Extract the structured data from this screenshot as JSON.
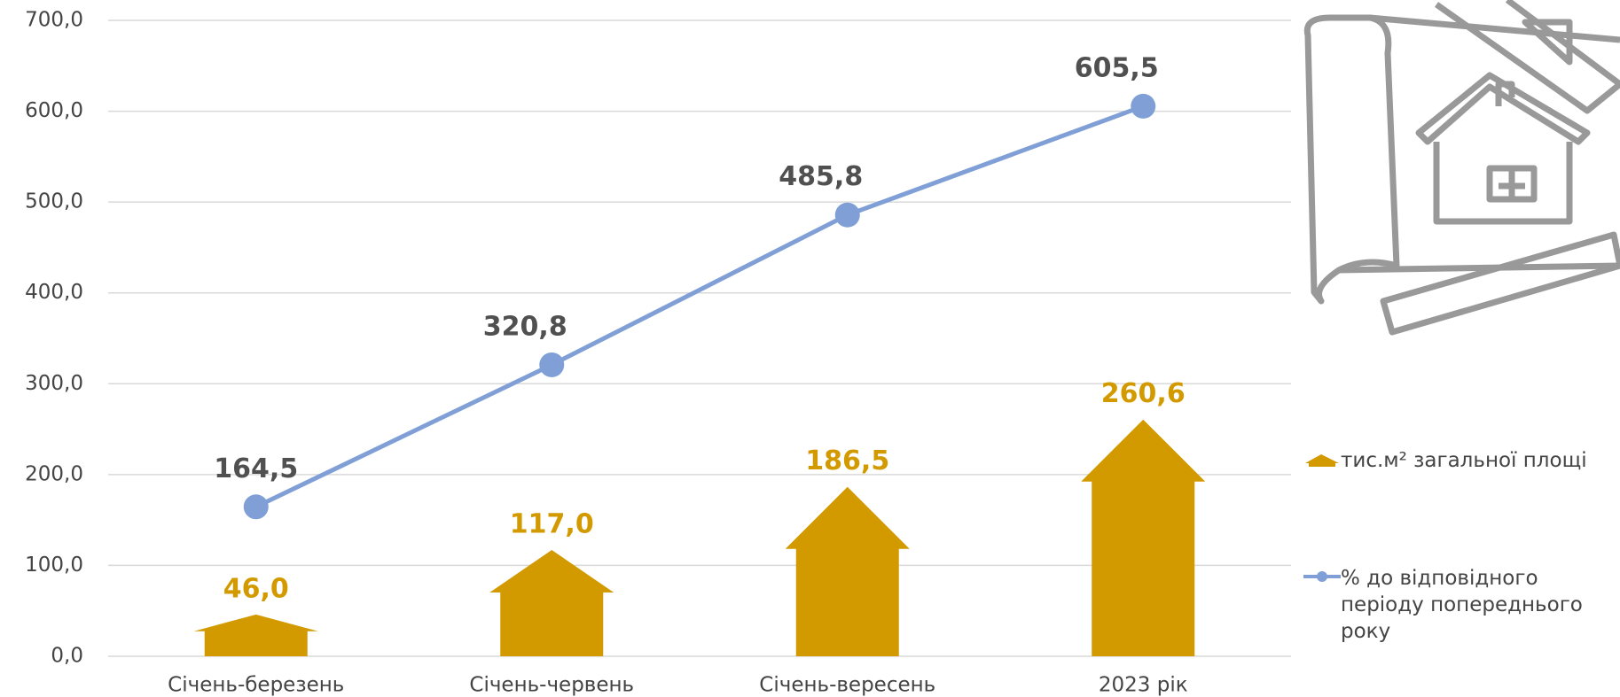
{
  "chart_data": {
    "type": "bar-line",
    "categories": [
      "Січень-березень",
      "Січень-червень",
      "Січень-вересень",
      "2023 рік"
    ],
    "series": [
      {
        "name": "тис.м² загальної площі",
        "type": "bar",
        "color": "#d39a00",
        "values": [
          46.0,
          117.0,
          186.5,
          260.6
        ],
        "value_labels": [
          "46,0",
          "117,0",
          "186,5",
          "260,6"
        ]
      },
      {
        "name": "% до відповідного періоду попереднього року",
        "type": "line",
        "color": "#7f9fd6",
        "values": [
          164.5,
          320.8,
          485.8,
          605.5
        ],
        "value_labels": [
          "164,5",
          "320,8",
          "485,8",
          "605,5"
        ]
      }
    ],
    "ylim": [
      0,
      700
    ],
    "yticks": [
      {
        "value": 0,
        "label": "0,0"
      },
      {
        "value": 100,
        "label": "100,0"
      },
      {
        "value": 200,
        "label": "200,0"
      },
      {
        "value": 300,
        "label": "300,0"
      },
      {
        "value": 400,
        "label": "400,0"
      },
      {
        "value": 500,
        "label": "500,0"
      },
      {
        "value": 600,
        "label": "600,0"
      },
      {
        "value": 700,
        "label": "700,0"
      }
    ],
    "grid": true
  }
}
